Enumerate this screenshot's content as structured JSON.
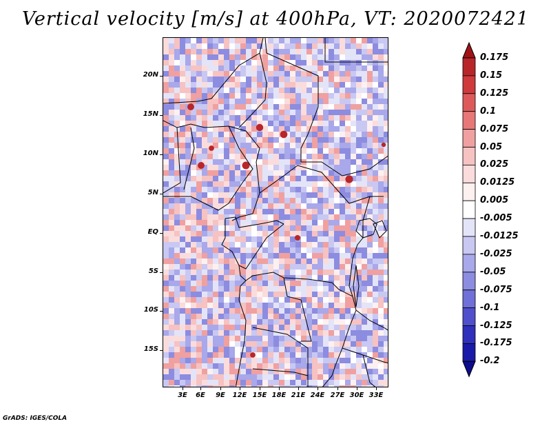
{
  "title": "Vertical velocity [m/s] at 400hPa, VT: 2020072421",
  "credit": "GrADS: IGES/COLA",
  "map": {
    "lat_labels": [
      "20N",
      "15N",
      "10N",
      "5N",
      "EQ",
      "5S",
      "10S",
      "15S"
    ],
    "lon_labels": [
      "3E",
      "6E",
      "9E",
      "12E",
      "15E",
      "18E",
      "21E",
      "24E",
      "27E",
      "30E",
      "33E"
    ]
  },
  "colorbar": {
    "levels": [
      "0.175",
      "0.15",
      "0.125",
      "0.1",
      "0.075",
      "0.05",
      "0.025",
      "0.0125",
      "0.005",
      "-0.005",
      "-0.0125",
      "-0.025",
      "-0.05",
      "-0.075",
      "-0.1",
      "-0.125",
      "-0.175",
      "-0.2"
    ],
    "colors": [
      "#a01418",
      "#b8262a",
      "#cf3a3c",
      "#de5a5a",
      "#e87878",
      "#f0a0a0",
      "#f6c2c2",
      "#fadcdc",
      "#fdf0f0",
      "#ffffff",
      "#e4e4f8",
      "#c8c8f2",
      "#a8a8ea",
      "#8c8ce0",
      "#7070d8",
      "#5050cc",
      "#3030bc",
      "#1a1aa8",
      "#0d0d8c"
    ]
  }
}
